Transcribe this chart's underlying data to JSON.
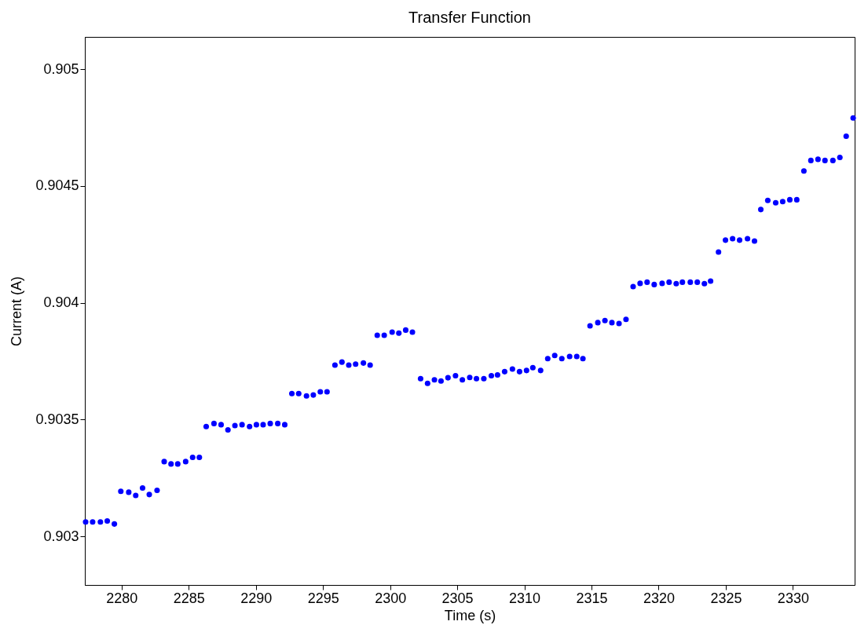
{
  "chart_data": {
    "type": "scatter",
    "title": "Transfer Function",
    "xlabel": "Time (s)",
    "ylabel": "Current (A)",
    "x": [
      2277.32,
      2277.84,
      2278.42,
      2278.93,
      2279.46,
      2279.94,
      2280.53,
      2281.05,
      2281.56,
      2282.06,
      2282.64,
      2283.17,
      2283.68,
      2284.18,
      2284.77,
      2285.29,
      2285.79,
      2286.3,
      2286.88,
      2287.41,
      2287.92,
      2288.44,
      2288.97,
      2289.53,
      2290.04,
      2290.54,
      2291.07,
      2291.63,
      2292.15,
      2292.68,
      2293.19,
      2293.77,
      2294.28,
      2294.8,
      2295.3,
      2295.89,
      2296.41,
      2296.92,
      2297.43,
      2298.01,
      2298.51,
      2299.04,
      2299.56,
      2300.15,
      2300.65,
      2301.16,
      2301.66,
      2302.27,
      2302.79,
      2303.3,
      2303.79,
      2304.31,
      2304.87,
      2305.38,
      2305.93,
      2306.43,
      2306.98,
      2307.54,
      2308.0,
      2308.53,
      2309.11,
      2309.64,
      2310.16,
      2310.63,
      2311.21,
      2311.74,
      2312.26,
      2312.79,
      2313.37,
      2313.9,
      2314.36,
      2314.89,
      2315.47,
      2316.0,
      2316.52,
      2317.05,
      2317.57,
      2318.1,
      2318.62,
      2319.14,
      2319.67,
      2320.26,
      2320.78,
      2321.31,
      2321.77,
      2322.36,
      2322.88,
      2323.41,
      2323.87,
      2324.46,
      2324.98,
      2325.51,
      2326.03,
      2326.62,
      2327.14,
      2327.61,
      2328.13,
      2328.72,
      2329.24,
      2329.77,
      2330.29,
      2330.82,
      2331.34,
      2331.87,
      2332.39,
      2332.98,
      2333.5,
      2333.97,
      2334.49
    ],
    "series": [
      {
        "color": "#0000ff",
        "values": [
          0.903062,
          0.903062,
          0.903062,
          0.903066,
          0.903053,
          0.903193,
          0.903189,
          0.903175,
          0.903207,
          0.903179,
          0.903197,
          0.90332,
          0.90331,
          0.90331,
          0.90332,
          0.903338,
          0.903338,
          0.90347,
          0.903483,
          0.903478,
          0.903456,
          0.903474,
          0.903478,
          0.90347,
          0.903478,
          0.903478,
          0.903483,
          0.903483,
          0.903478,
          0.903611,
          0.903611,
          0.903601,
          0.903605,
          0.903619,
          0.903619,
          0.903733,
          0.903746,
          0.903733,
          0.903737,
          0.903742,
          0.903733,
          0.903861,
          0.903861,
          0.903874,
          0.90387,
          0.903883,
          0.903874,
          0.903675,
          0.903655,
          0.90367,
          0.903665,
          0.903679,
          0.903688,
          0.90367,
          0.90368,
          0.903675,
          0.903675,
          0.903688,
          0.903691,
          0.903705,
          0.903716,
          0.903705,
          0.90371,
          0.903722,
          0.90371,
          0.903761,
          0.903774,
          0.903761,
          0.90377,
          0.90377,
          0.903761,
          0.903901,
          0.903915,
          0.903924,
          0.903915,
          0.903911,
          0.903929,
          0.904069,
          0.904083,
          0.904088,
          0.904078,
          0.904083,
          0.904088,
          0.904082,
          0.904088,
          0.904088,
          0.904088,
          0.904082,
          0.904093,
          0.904217,
          0.904268,
          0.904274,
          0.904268,
          0.904274,
          0.904264,
          0.904399,
          0.904438,
          0.904428,
          0.904433,
          0.904441,
          0.904441,
          0.904564,
          0.904609,
          0.904614,
          0.904609,
          0.904609,
          0.904622,
          0.904713,
          0.904791
        ]
      }
    ],
    "xlim": [
      2277.26,
      2334.6
    ],
    "xticks": [
      2280,
      2285,
      2290,
      2295,
      2300,
      2305,
      2310,
      2315,
      2320,
      2325,
      2330
    ],
    "ylim": [
      0.902792,
      0.905138
    ],
    "yticks": [
      0.903,
      0.9035,
      0.904,
      0.9045,
      0.905
    ],
    "grid": false,
    "marker": "circle"
  }
}
